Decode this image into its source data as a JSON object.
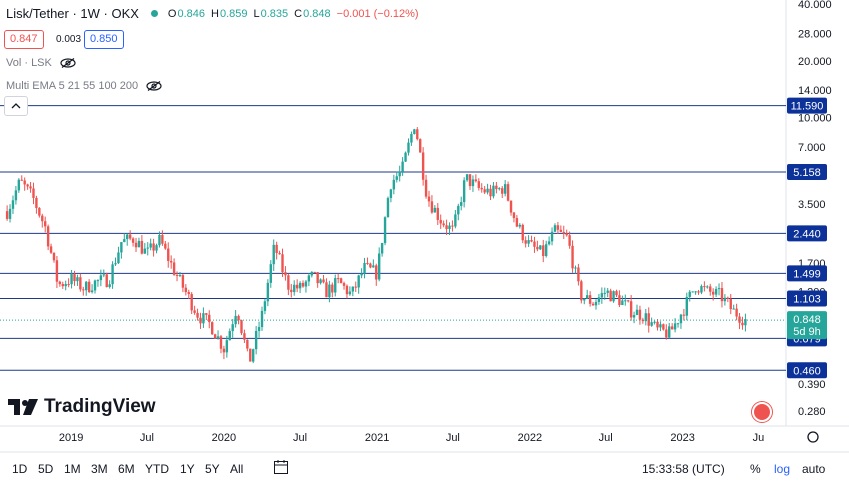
{
  "header": {
    "symbol": "Lisk/Tether · 1W · OKX",
    "open_label": "O",
    "open": "0.846",
    "high_label": "H",
    "high": "0.859",
    "low_label": "L",
    "low": "0.835",
    "close_label": "C",
    "close": "0.848",
    "change": "−0.001 (−0.12%)"
  },
  "quote": {
    "bid": "0.847",
    "spread": "0.003",
    "ask": "0.850"
  },
  "indicators": [
    "Vol · LSK",
    "Multi EMA 5 21 55 100 200"
  ],
  "logo_text": "TradingView",
  "bottom": {
    "ranges": [
      "1D",
      "5D",
      "1M",
      "3M",
      "6M",
      "YTD",
      "1Y",
      "5Y",
      "All"
    ],
    "clock": "15:33:58 (UTC)",
    "percent": "%",
    "log": "log",
    "auto": "auto"
  },
  "chart_data": {
    "type": "candlestick",
    "y_scale": "log",
    "y_ticks": [
      "40.000",
      "28.000",
      "20.000",
      "14.000",
      "10.000",
      "7.000",
      "3.500",
      "1.700",
      "1.200",
      "0.390",
      "0.280"
    ],
    "x_ticks": [
      "2019",
      "Jul",
      "2020",
      "Jul",
      "2021",
      "Jul",
      "2022",
      "Jul",
      "2023",
      "Ju"
    ],
    "horizontal_levels": [
      {
        "value": 11.59,
        "label": "11.590"
      },
      {
        "value": 5.158,
        "label": "5.158"
      },
      {
        "value": 2.44,
        "label": "2.440"
      },
      {
        "value": 1.499,
        "label": "1.499"
      },
      {
        "value": 1.103,
        "label": "1.103"
      },
      {
        "value": 0.679,
        "label": "0.679"
      },
      {
        "value": 0.46,
        "label": "0.460"
      }
    ],
    "last_price": {
      "value": 0.848,
      "label": "0.848",
      "countdown": "5d 9h"
    },
    "path": [
      [
        "2018-08-01",
        3.2
      ],
      [
        "2018-09-01",
        4.6
      ],
      [
        "2018-10-01",
        3.8
      ],
      [
        "2018-11-01",
        2.6
      ],
      [
        "2018-12-01",
        1.3
      ],
      [
        "2019-01-01",
        1.4
      ],
      [
        "2019-02-01",
        1.25
      ],
      [
        "2019-03-01",
        1.35
      ],
      [
        "2019-04-01",
        1.4
      ],
      [
        "2019-05-01",
        2.2
      ],
      [
        "2019-06-01",
        2.3
      ],
      [
        "2019-07-01",
        1.9
      ],
      [
        "2019-08-01",
        2.25
      ],
      [
        "2019-09-01",
        1.6
      ],
      [
        "2019-10-01",
        1.2
      ],
      [
        "2019-11-01",
        0.9
      ],
      [
        "2019-12-01",
        0.8
      ],
      [
        "2020-01-01",
        0.6
      ],
      [
        "2020-02-01",
        1.0
      ],
      [
        "2020-03-01",
        0.5
      ],
      [
        "2020-04-01",
        0.9
      ],
      [
        "2020-05-01",
        2.1
      ],
      [
        "2020-06-01",
        1.3
      ],
      [
        "2020-07-01",
        1.25
      ],
      [
        "2020-08-01",
        1.45
      ],
      [
        "2020-09-01",
        1.2
      ],
      [
        "2020-10-01",
        1.35
      ],
      [
        "2020-11-01",
        1.15
      ],
      [
        "2020-12-01",
        1.6
      ],
      [
        "2021-01-01",
        1.5
      ],
      [
        "2021-02-01",
        4.5
      ],
      [
        "2021-03-01",
        5.2
      ],
      [
        "2021-04-01",
        9.5
      ],
      [
        "2021-05-01",
        3.8
      ],
      [
        "2021-06-01",
        2.9
      ],
      [
        "2021-07-01",
        2.5
      ],
      [
        "2021-08-01",
        4.8
      ],
      [
        "2021-09-01",
        4.2
      ],
      [
        "2021-10-01",
        4.0
      ],
      [
        "2021-11-01",
        4.3
      ],
      [
        "2021-12-01",
        2.7
      ],
      [
        "2022-01-01",
        2.1
      ],
      [
        "2022-02-01",
        1.9
      ],
      [
        "2022-03-01",
        2.5
      ],
      [
        "2022-04-01",
        2.3
      ],
      [
        "2022-05-01",
        1.15
      ],
      [
        "2022-06-01",
        1.05
      ],
      [
        "2022-07-01",
        1.2
      ],
      [
        "2022-08-01",
        1.1
      ],
      [
        "2022-09-01",
        0.95
      ],
      [
        "2022-10-01",
        0.9
      ],
      [
        "2022-11-01",
        0.75
      ],
      [
        "2022-12-01",
        0.72
      ],
      [
        "2023-01-01",
        0.95
      ],
      [
        "2023-02-01",
        1.3
      ],
      [
        "2023-03-01",
        1.2
      ],
      [
        "2023-04-01",
        1.15
      ],
      [
        "2023-05-01",
        0.95
      ],
      [
        "2023-06-01",
        0.848
      ]
    ]
  }
}
